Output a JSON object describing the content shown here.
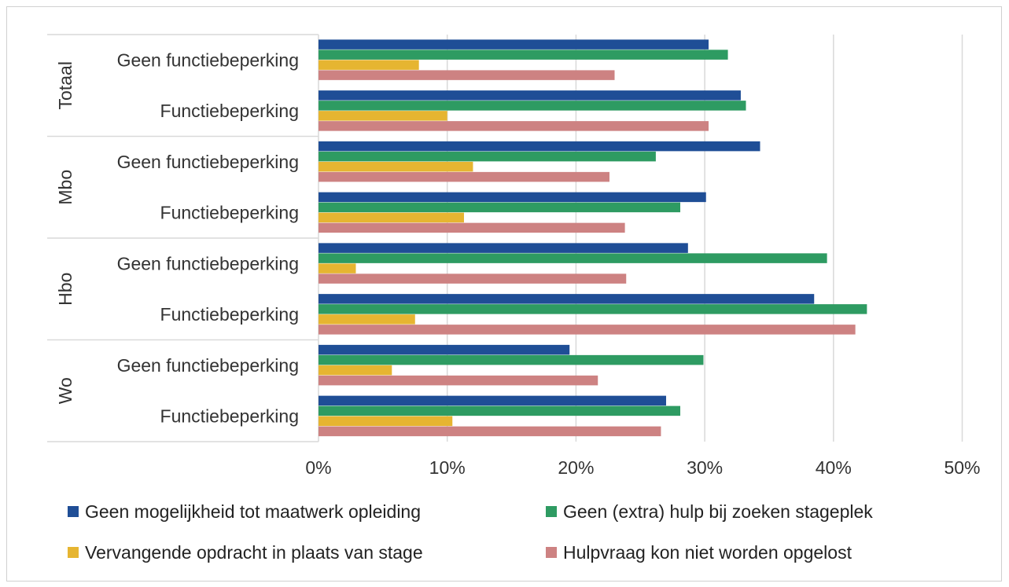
{
  "chart_data": {
    "type": "bar",
    "orientation": "horizontal",
    "groups": [
      {
        "label": "Totaal",
        "categories": [
          "Geen functiebeperking",
          "Functiebeperking"
        ]
      },
      {
        "label": "Mbo",
        "categories": [
          "Geen functiebeperking",
          "Functiebeperking"
        ]
      },
      {
        "label": "Hbo",
        "categories": [
          "Geen functiebeperking",
          "Functiebeperking"
        ]
      },
      {
        "label": "Wo",
        "categories": [
          "Geen functiebeperking",
          "Functiebeperking"
        ]
      }
    ],
    "series": [
      {
        "name": "Geen mogelijkheid tot maatwerk opleiding",
        "color": "#1f4e96",
        "values": [
          30.3,
          32.8,
          34.3,
          30.1,
          28.7,
          38.5,
          19.5,
          27.0
        ]
      },
      {
        "name": "Geen (extra) hulp bij zoeken stageplek",
        "color": "#2e9b62",
        "values": [
          31.8,
          33.2,
          26.2,
          28.1,
          39.5,
          42.6,
          29.9,
          28.1
        ]
      },
      {
        "name": "Vervangende opdracht in plaats van stage",
        "color": "#e6b531",
        "values": [
          7.8,
          10.0,
          12.0,
          11.3,
          2.9,
          7.5,
          5.7,
          10.4
        ]
      },
      {
        "name": "Hulpvraag kon niet worden opgelost",
        "color": "#cd8282",
        "values": [
          23.0,
          30.3,
          22.6,
          23.8,
          23.9,
          41.7,
          21.7,
          26.6
        ]
      }
    ],
    "xticks": [
      "0%",
      "10%",
      "20%",
      "30%",
      "40%",
      "50%"
    ],
    "xlim": [
      0,
      50
    ],
    "grid": true,
    "legend_position": "bottom"
  }
}
